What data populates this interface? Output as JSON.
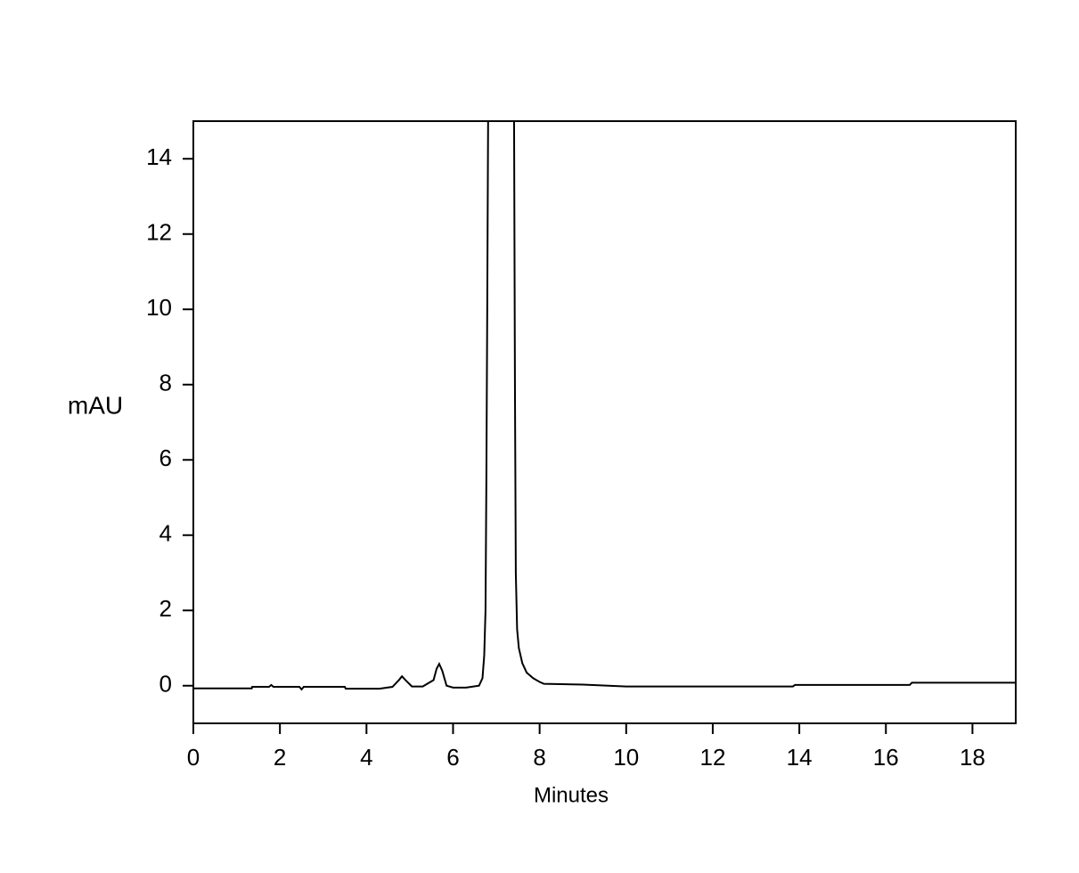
{
  "chart_data": {
    "type": "line",
    "xlabel": "Minutes",
    "ylabel": "mAU",
    "xlim": [
      0,
      19
    ],
    "xticks": [
      0,
      2,
      4,
      6,
      8,
      10,
      12,
      14,
      16,
      18
    ],
    "ylim": [
      -1,
      15
    ],
    "yticks": [
      0,
      2,
      4,
      6,
      8,
      10,
      12,
      14
    ],
    "grid": false,
    "series": [
      {
        "name": "mAU",
        "color": "#000000",
        "x": [
          0,
          1.35,
          1.36,
          1.75,
          1.8,
          1.85,
          2.45,
          2.5,
          2.55,
          3.5,
          3.52,
          4.3,
          4.6,
          4.75,
          4.82,
          4.9,
          5.05,
          5.3,
          5.55,
          5.62,
          5.68,
          5.75,
          5.85,
          6.0,
          6.3,
          6.6,
          6.68,
          6.72,
          6.75,
          6.77,
          6.79,
          6.81,
          7.41,
          7.43,
          7.45,
          7.48,
          7.52,
          7.6,
          7.7,
          7.85,
          8.0,
          8.1,
          9.0,
          10.0,
          13.5,
          13.85,
          13.9,
          16.55,
          16.6,
          19
        ],
        "values": [
          -0.07,
          -0.07,
          -0.03,
          -0.03,
          0.02,
          -0.03,
          -0.03,
          -0.1,
          -0.03,
          -0.03,
          -0.08,
          -0.08,
          -0.03,
          0.15,
          0.25,
          0.15,
          -0.02,
          -0.02,
          0.15,
          0.45,
          0.58,
          0.4,
          0.0,
          -0.05,
          -0.05,
          0.0,
          0.2,
          0.8,
          2.0,
          5.5,
          10.0,
          15,
          15,
          8.0,
          3.0,
          1.5,
          1.0,
          0.6,
          0.35,
          0.2,
          0.1,
          0.05,
          0.03,
          -0.02,
          -0.02,
          -0.02,
          0.02,
          0.02,
          0.08,
          0.08
        ]
      }
    ]
  }
}
